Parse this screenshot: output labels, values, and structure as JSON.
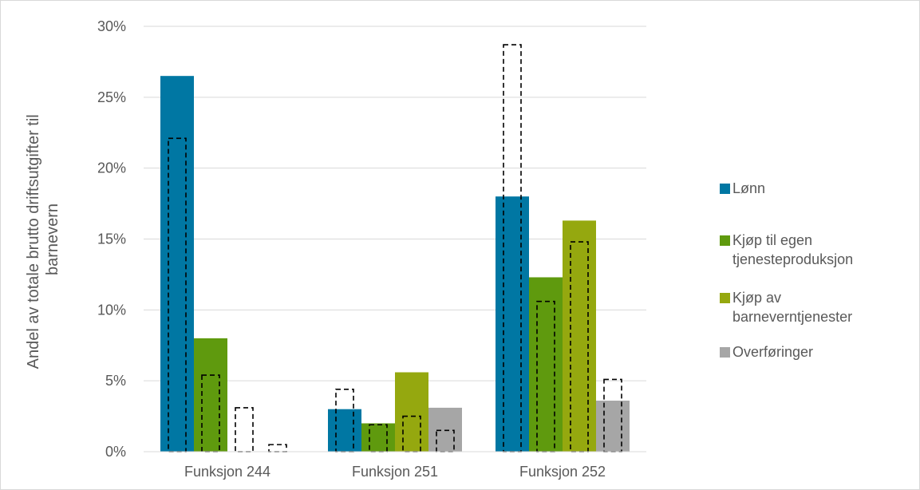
{
  "chart_data": {
    "type": "bar",
    "title": "",
    "ylabel_lines": [
      "Andel av totale brutto driftsutgifter til",
      "barnevern"
    ],
    "categories": [
      "Funksjon 244",
      "Funksjon 251",
      "Funksjon 252"
    ],
    "ylim": [
      0,
      30
    ],
    "yticks": [
      0,
      5,
      10,
      15,
      20,
      25,
      30
    ],
    "ytick_labels": [
      "0%",
      "5%",
      "10%",
      "15%",
      "20%",
      "25%",
      "30%"
    ],
    "grid": true,
    "legend_position": "right",
    "series": [
      {
        "name": "Lønn",
        "legend_lines": [
          "Lønn"
        ],
        "color": "#0077a3",
        "values": [
          26.5,
          3.0,
          18.0
        ]
      },
      {
        "name": "Kjøp til egen tjenesteproduksjon",
        "legend_lines": [
          "Kjøp til egen",
          "tjenesteproduksjon"
        ],
        "color": "#5f9a0e",
        "values": [
          8.0,
          2.0,
          12.3
        ]
      },
      {
        "name": "Kjøp av barneverntjenester",
        "legend_lines": [
          "Kjøp av",
          "barneverntjenester"
        ],
        "color": "#95a80f",
        "values": [
          0,
          5.6,
          16.3
        ]
      },
      {
        "name": "Overføringer",
        "legend_lines": [
          "Overføringer"
        ],
        "color": "#a6a6a6",
        "values": [
          0,
          3.1,
          3.6
        ]
      }
    ],
    "comparison_outlines": [
      [
        22.1,
        4.4,
        28.7
      ],
      [
        5.4,
        1.9,
        10.6
      ],
      [
        3.1,
        2.5,
        14.8
      ],
      [
        0.5,
        1.5,
        5.1
      ]
    ]
  }
}
